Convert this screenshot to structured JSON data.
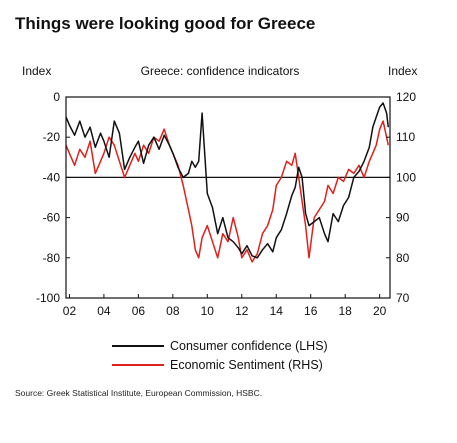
{
  "chart_data": {
    "type": "line",
    "title": "Things were looking good for Greece",
    "subtitle": "Greece: confidence indicators",
    "left_axis": {
      "label": "Index",
      "range": [
        -100,
        0
      ],
      "ticks": [
        "0",
        "-20",
        "-40",
        "-60",
        "-80",
        "-100"
      ]
    },
    "right_axis": {
      "label": "Index",
      "range": [
        70,
        120
      ],
      "ticks": [
        "120",
        "110",
        "100",
        "90",
        "80",
        "70"
      ]
    },
    "x_ticks": [
      "02",
      "04",
      "06",
      "08",
      "10",
      "12",
      "14",
      "16",
      "18",
      "20"
    ],
    "x_range": [
      2001.8,
      2020.6
    ],
    "reference_line_lhs": -40,
    "series": [
      {
        "name": "Consumer confidence (LHS)",
        "axis": "left",
        "color": "#111111",
        "x": [
          2001.8,
          2002.0,
          2002.3,
          2002.6,
          2002.9,
          2003.2,
          2003.5,
          2003.8,
          2004.0,
          2004.3,
          2004.6,
          2004.9,
          2005.2,
          2005.5,
          2005.8,
          2006.0,
          2006.3,
          2006.6,
          2006.9,
          2007.2,
          2007.5,
          2007.8,
          2008.0,
          2008.3,
          2008.6,
          2008.9,
          2009.1,
          2009.3,
          2009.5,
          2009.7,
          2010.0,
          2010.3,
          2010.6,
          2010.9,
          2011.2,
          2011.5,
          2011.8,
          2012.0,
          2012.3,
          2012.6,
          2012.9,
          2013.2,
          2013.5,
          2013.8,
          2014.0,
          2014.3,
          2014.6,
          2014.9,
          2015.1,
          2015.3,
          2015.5,
          2015.7,
          2015.9,
          2016.2,
          2016.5,
          2016.8,
          2017.0,
          2017.3,
          2017.6,
          2017.9,
          2018.2,
          2018.5,
          2018.8,
          2019.1,
          2019.4,
          2019.6,
          2019.8,
          2020.0,
          2020.2,
          2020.4,
          2020.5
        ],
        "values": [
          -10,
          -14,
          -19,
          -12,
          -20,
          -15,
          -25,
          -18,
          -22,
          -30,
          -12,
          -18,
          -36,
          -30,
          -25,
          -22,
          -33,
          -24,
          -20,
          -26,
          -19,
          -24,
          -28,
          -35,
          -40,
          -38,
          -32,
          -35,
          -32,
          -8,
          -48,
          -55,
          -68,
          -60,
          -70,
          -72,
          -75,
          -78,
          -74,
          -79,
          -80,
          -76,
          -73,
          -77,
          -70,
          -66,
          -58,
          -49,
          -45,
          -35,
          -40,
          -58,
          -64,
          -62,
          -60,
          -68,
          -72,
          -58,
          -62,
          -54,
          -50,
          -40,
          -37,
          -32,
          -25,
          -15,
          -10,
          -5,
          -3,
          -8,
          -15
        ]
      },
      {
        "name": "Economic Sentiment (RHS)",
        "axis": "right",
        "color": "#e0201b",
        "x": [
          2001.8,
          2002.0,
          2002.3,
          2002.6,
          2002.9,
          2003.2,
          2003.5,
          2003.8,
          2004.0,
          2004.3,
          2004.6,
          2004.9,
          2005.2,
          2005.5,
          2005.8,
          2006.0,
          2006.3,
          2006.6,
          2006.9,
          2007.2,
          2007.5,
          2007.8,
          2008.0,
          2008.3,
          2008.6,
          2008.9,
          2009.1,
          2009.3,
          2009.5,
          2009.7,
          2010.0,
          2010.3,
          2010.6,
          2010.9,
          2011.2,
          2011.5,
          2011.8,
          2012.0,
          2012.3,
          2012.6,
          2012.9,
          2013.2,
          2013.5,
          2013.8,
          2014.0,
          2014.3,
          2014.6,
          2014.9,
          2015.1,
          2015.3,
          2015.5,
          2015.7,
          2015.9,
          2016.2,
          2016.5,
          2016.8,
          2017.0,
          2017.3,
          2017.6,
          2017.9,
          2018.2,
          2018.5,
          2018.8,
          2019.1,
          2019.4,
          2019.6,
          2019.8,
          2020.0,
          2020.2,
          2020.4,
          2020.5
        ],
        "values": [
          108,
          106,
          103,
          107,
          105,
          109,
          101,
          104,
          106,
          110,
          108,
          104,
          100,
          103,
          106,
          104,
          108,
          106,
          110,
          109,
          112,
          108,
          106,
          103,
          98,
          92,
          88,
          82,
          80,
          85,
          88,
          84,
          80,
          86,
          84,
          90,
          85,
          80,
          82,
          79,
          81,
          86,
          88,
          92,
          98,
          100,
          104,
          103,
          106,
          100,
          94,
          88,
          80,
          90,
          92,
          94,
          98,
          96,
          100,
          99,
          102,
          101,
          103,
          100,
          104,
          106,
          108,
          112,
          114,
          110,
          108
        ]
      }
    ],
    "source": "Source: Greek Statistical Institute, European Commission, HSBC."
  }
}
